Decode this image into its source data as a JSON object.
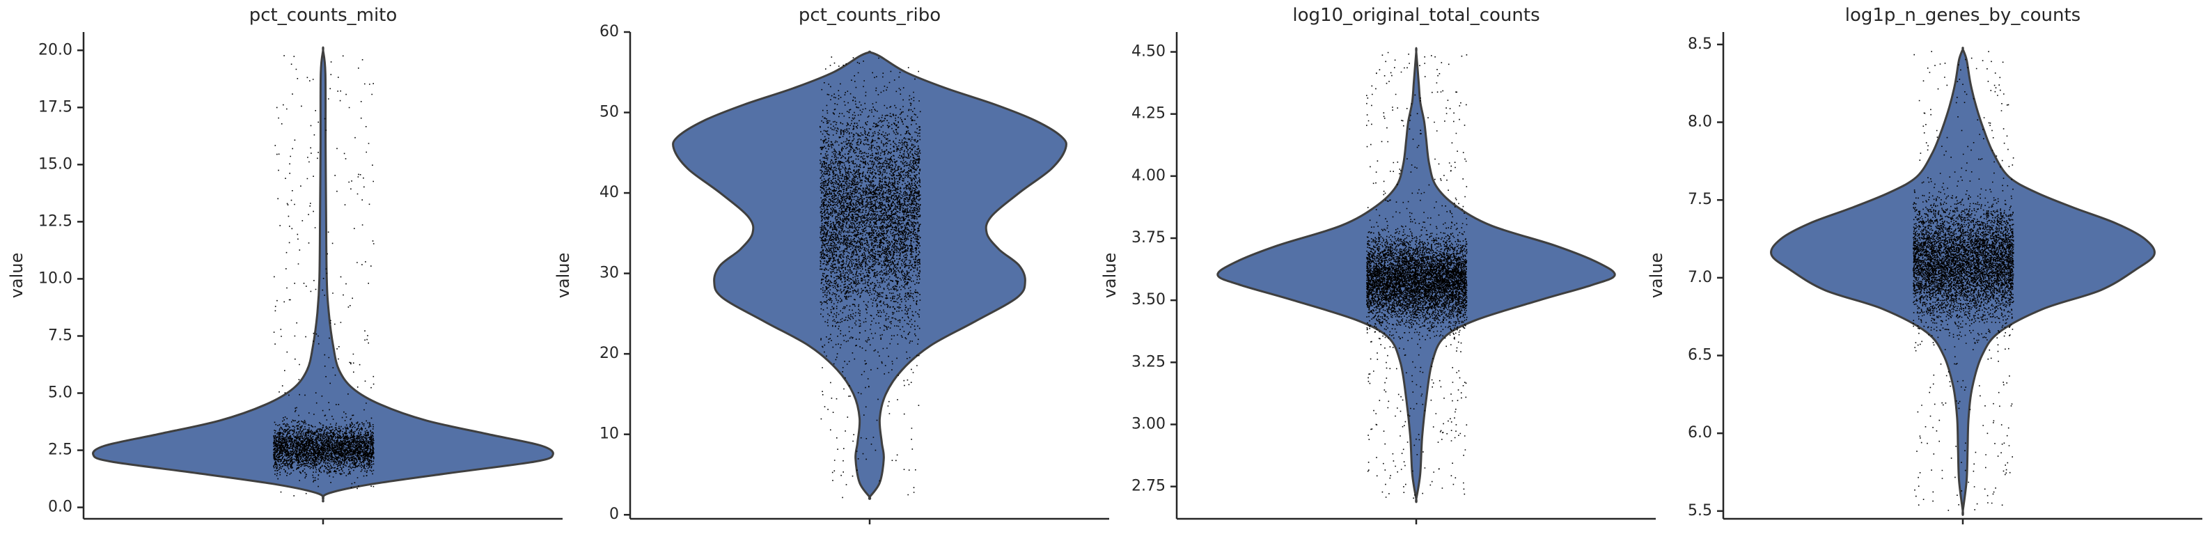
{
  "chart_data": [
    {
      "type": "violin",
      "title": "pct_counts_mito",
      "xlabel": "",
      "ylabel": "value",
      "ylim": [
        -0.5,
        20.8
      ],
      "yticks": [
        0.0,
        2.5,
        5.0,
        7.5,
        10.0,
        12.5,
        15.0,
        17.5,
        20.0
      ],
      "ytick_labels": [
        "0.0",
        "2.5",
        "5.0",
        "7.5",
        "10.0",
        "12.5",
        "15.0",
        "17.5",
        "20.0"
      ],
      "density_profile": [
        [
          0.3,
          0.0
        ],
        [
          0.6,
          0.02
        ],
        [
          1.0,
          0.2
        ],
        [
          1.5,
          0.55
        ],
        [
          2.0,
          0.92
        ],
        [
          2.3,
          1.0
        ],
        [
          2.7,
          0.95
        ],
        [
          3.2,
          0.72
        ],
        [
          3.8,
          0.45
        ],
        [
          4.5,
          0.25
        ],
        [
          5.2,
          0.13
        ],
        [
          6.0,
          0.07
        ],
        [
          7.0,
          0.045
        ],
        [
          8.5,
          0.025
        ],
        [
          10.0,
          0.016
        ],
        [
          13.0,
          0.013
        ],
        [
          16.0,
          0.011
        ],
        [
          19.0,
          0.01
        ],
        [
          20.0,
          0.0
        ]
      ],
      "points": {
        "count": 3500,
        "center": 2.6,
        "spread": 0.9,
        "min": 0.4,
        "max": 19.8,
        "tail_fraction": 0.08
      }
    },
    {
      "type": "violin",
      "title": "pct_counts_ribo",
      "xlabel": "",
      "ylabel": "value",
      "ylim": [
        -0.5,
        60
      ],
      "yticks": [
        0,
        10,
        20,
        30,
        40,
        50,
        60
      ],
      "ytick_labels": [
        "0",
        "10",
        "20",
        "30",
        "40",
        "50",
        "60"
      ],
      "density_profile": [
        [
          2.2,
          0.0
        ],
        [
          4.0,
          0.05
        ],
        [
          7.0,
          0.07
        ],
        [
          9.0,
          0.06
        ],
        [
          12.0,
          0.05
        ],
        [
          15.0,
          0.08
        ],
        [
          18.0,
          0.16
        ],
        [
          21.0,
          0.3
        ],
        [
          24.0,
          0.52
        ],
        [
          27.0,
          0.73
        ],
        [
          29.0,
          0.77
        ],
        [
          31.0,
          0.74
        ],
        [
          33.0,
          0.64
        ],
        [
          35.0,
          0.58
        ],
        [
          37.0,
          0.6
        ],
        [
          40.0,
          0.74
        ],
        [
          43.0,
          0.9
        ],
        [
          45.5,
          0.97
        ],
        [
          47.0,
          0.95
        ],
        [
          49.0,
          0.82
        ],
        [
          51.0,
          0.62
        ],
        [
          53.0,
          0.38
        ],
        [
          55.0,
          0.18
        ],
        [
          57.0,
          0.05
        ],
        [
          57.5,
          0.0
        ]
      ],
      "points": {
        "count": 6000,
        "center": 37.0,
        "spread": 12.0,
        "min": 2.2,
        "max": 57.5,
        "tail_fraction": 0.04
      }
    },
    {
      "type": "violin",
      "title": "log10_original_total_counts",
      "xlabel": "",
      "ylabel": "value",
      "ylim": [
        2.62,
        4.58
      ],
      "yticks": [
        2.75,
        3.0,
        3.25,
        3.5,
        3.75,
        4.0,
        4.25,
        4.5
      ],
      "ytick_labels": [
        "2.75",
        "3.00",
        "3.25",
        "3.50",
        "3.75",
        "4.00",
        "4.25",
        "4.50"
      ],
      "density_profile": [
        [
          2.7,
          0.0
        ],
        [
          2.8,
          0.02
        ],
        [
          2.95,
          0.03
        ],
        [
          3.1,
          0.05
        ],
        [
          3.25,
          0.08
        ],
        [
          3.35,
          0.14
        ],
        [
          3.42,
          0.3
        ],
        [
          3.5,
          0.62
        ],
        [
          3.56,
          0.88
        ],
        [
          3.6,
          1.0
        ],
        [
          3.65,
          0.92
        ],
        [
          3.72,
          0.7
        ],
        [
          3.8,
          0.38
        ],
        [
          3.88,
          0.2
        ],
        [
          3.96,
          0.1
        ],
        [
          4.05,
          0.065
        ],
        [
          4.15,
          0.05
        ],
        [
          4.22,
          0.04
        ],
        [
          4.3,
          0.02
        ],
        [
          4.38,
          0.012
        ],
        [
          4.5,
          0.0
        ]
      ],
      "points": {
        "count": 6500,
        "center": 3.58,
        "spread": 0.15,
        "min": 2.7,
        "max": 4.5,
        "tail_fraction": 0.08
      }
    },
    {
      "type": "violin",
      "title": "log1p_n_genes_by_counts",
      "xlabel": "",
      "ylabel": "value",
      "ylim": [
        5.45,
        8.58
      ],
      "yticks": [
        5.5,
        6.0,
        6.5,
        7.0,
        7.5,
        8.0,
        8.5
      ],
      "ytick_labels": [
        "5.5",
        "6.0",
        "6.5",
        "7.0",
        "7.5",
        "8.0",
        "8.5"
      ],
      "density_profile": [
        [
          5.5,
          0.0
        ],
        [
          5.7,
          0.02
        ],
        [
          5.9,
          0.025
        ],
        [
          6.1,
          0.03
        ],
        [
          6.3,
          0.05
        ],
        [
          6.5,
          0.1
        ],
        [
          6.65,
          0.19
        ],
        [
          6.8,
          0.42
        ],
        [
          6.92,
          0.72
        ],
        [
          7.05,
          0.9
        ],
        [
          7.15,
          1.0
        ],
        [
          7.25,
          0.95
        ],
        [
          7.35,
          0.8
        ],
        [
          7.45,
          0.58
        ],
        [
          7.55,
          0.38
        ],
        [
          7.65,
          0.24
        ],
        [
          7.8,
          0.16
        ],
        [
          7.95,
          0.11
        ],
        [
          8.1,
          0.07
        ],
        [
          8.25,
          0.04
        ],
        [
          8.4,
          0.02
        ],
        [
          8.47,
          0.0
        ]
      ],
      "points": {
        "count": 6000,
        "center": 7.1,
        "spread": 0.32,
        "min": 5.5,
        "max": 8.47,
        "tail_fraction": 0.06
      }
    }
  ],
  "colors": {
    "violin_fill": "#5471a6",
    "violin_edge": "#3f3f3f",
    "points": "#000000",
    "axes": "#262626"
  }
}
